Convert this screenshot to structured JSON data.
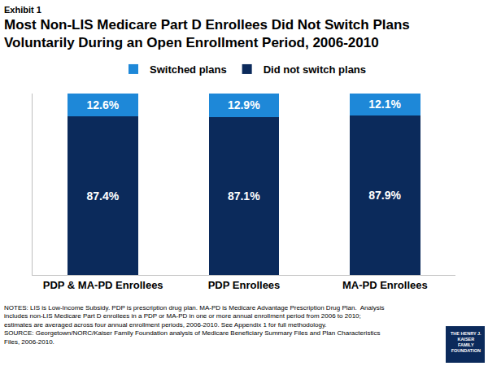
{
  "chart_data": {
    "type": "bar",
    "label": "Exhibit 1",
    "title": [
      "Most Non-LIS Medicare Part D Enrollees Did Not Switch Plans",
      "Voluntarily During an Open Enrollment Period, 2006-2010"
    ],
    "categories": [
      "PDP & MA-PD Enrollees",
      "PDP Enrollees",
      "MA-PD Enrollees"
    ],
    "series": [
      {
        "name": "Switched plans",
        "color": "#1e88d8",
        "values": [
          12.6,
          12.9,
          12.1
        ],
        "value_labels": [
          "12.6%",
          "12.9%",
          "12.1%"
        ]
      },
      {
        "name": "Did not switch plans",
        "color": "#0b2a5b",
        "values": [
          87.4,
          87.1,
          87.9
        ],
        "value_labels": [
          "87.4%",
          "87.1%",
          "87.9%"
        ]
      }
    ],
    "stacked": true,
    "data_labels": true,
    "legend": "top",
    "grid": false,
    "tick_labels": "x",
    "ylim": [
      0,
      100
    ],
    "yticks": [],
    "notes": [
      "NOTES: LIS is Low-Income Subsidy. PDP is prescription drug plan. MA-PD is Medicare Advantage Prescription Drug Plan.  Analysis",
      "includes non-LIS Medicare Part D enrollees in a PDP or MA-PD in one or more annual enrollment period from 2006 to 2010;",
      "estimates are averaged across four annual enrollment periods, 2006-2010. See Appendix 1 for full methodology.",
      "SOURCE: Georgetown/NORC/Kaiser Family Foundation analysis of Medicare Beneficiary Summary Files and Plan Characteristics",
      "Files, 2006-2010."
    ],
    "logo": [
      "THE HENRY J.",
      "KAISER",
      "FAMILY",
      "FOUNDATION"
    ]
  }
}
